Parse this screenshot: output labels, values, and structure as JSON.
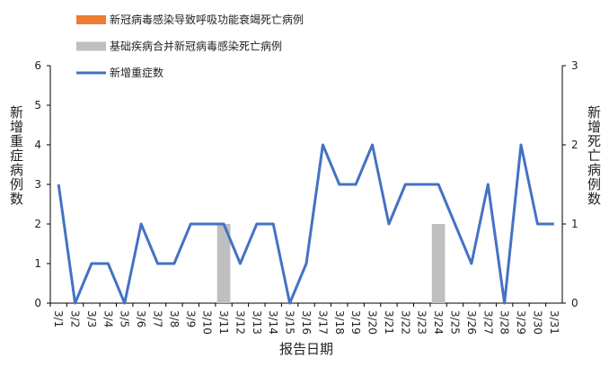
{
  "chart_data": {
    "type": "bar-line",
    "x_label": "报告日期",
    "y_label": "新增重症病例数",
    "y2_label": "新增死亡病例数",
    "categories": [
      "3/1",
      "3/2",
      "3/3",
      "3/4",
      "3/5",
      "3/6",
      "3/7",
      "3/8",
      "3/9",
      "3/10",
      "3/11",
      "3/12",
      "3/13",
      "3/14",
      "3/15",
      "3/16",
      "3/17",
      "3/18",
      "3/19",
      "3/20",
      "3/21",
      "3/22",
      "3/23",
      "3/24",
      "3/25",
      "3/26",
      "3/27",
      "3/28",
      "3/29",
      "3/30",
      "3/31"
    ],
    "series": [
      {
        "name": "新冠病毒感染导致呼吸功能衰竭死亡病例",
        "type": "bar",
        "axis": "y2",
        "color": "#ed7d31",
        "values": [
          0,
          0,
          0,
          0,
          0,
          0,
          0,
          0,
          0,
          0,
          0,
          0,
          0,
          0,
          0,
          0,
          0,
          0,
          0,
          0,
          0,
          0,
          0,
          0,
          0,
          0,
          0,
          0,
          0,
          0,
          0
        ]
      },
      {
        "name": "基础疾病合并新冠病毒感染死亡病例",
        "type": "bar",
        "axis": "y2",
        "color": "#bfbfbf",
        "values": [
          0,
          0,
          0,
          0,
          0,
          0,
          0,
          0,
          0,
          0,
          1,
          0,
          0,
          0,
          0,
          0,
          0,
          0,
          0,
          0,
          0,
          0,
          0,
          1,
          0,
          0,
          0,
          0,
          0,
          0,
          0
        ]
      },
      {
        "name": "新增重症数",
        "type": "line",
        "axis": "y",
        "color": "#4472c4",
        "values": [
          3,
          0,
          1,
          1,
          0,
          2,
          1,
          1,
          2,
          2,
          2,
          1,
          2,
          2,
          0,
          1,
          4,
          3,
          3,
          4,
          2,
          3,
          3,
          3,
          2,
          1,
          3,
          0,
          4,
          2,
          2
        ]
      }
    ],
    "ylim": [
      0,
      6
    ],
    "yticks": [
      0,
      1,
      2,
      3,
      4,
      5,
      6
    ],
    "y2lim": [
      0,
      3
    ],
    "y2ticks": [
      0,
      1,
      2,
      3
    ]
  }
}
